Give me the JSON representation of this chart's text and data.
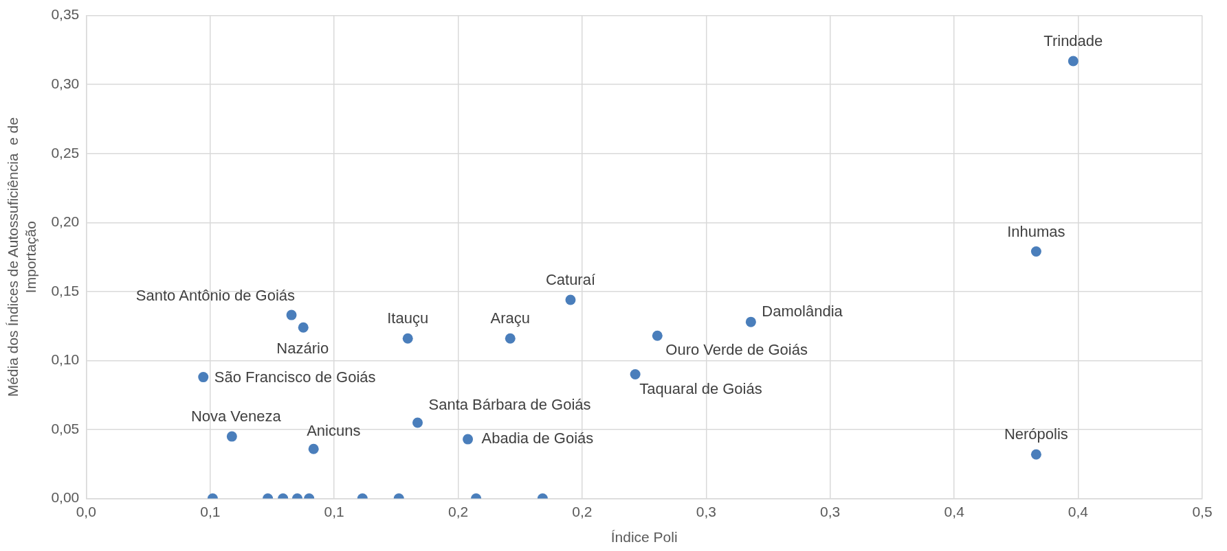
{
  "chart_data": {
    "type": "scatter",
    "xlabel": "Índice Poli",
    "ylabel": "Média dos Índices de Autossuficiência  e de Importação",
    "x": [
      0.4422,
      0.4256,
      0.217,
      0.2978,
      0.092,
      0.0973,
      0.1441,
      0.19,
      0.2559,
      0.246,
      0.0525,
      0.0653,
      0.1019,
      0.1485,
      0.171,
      0.4256,
      0.0567,
      0.0814,
      0.0882,
      0.0946,
      0.0999,
      0.1238,
      0.1401,
      0.1747,
      0.2045
    ],
    "series": [
      {
        "color": "#4a7ebb",
        "values": [
          0.317,
          0.179,
          0.144,
          0.128,
          0.133,
          0.124,
          0.116,
          0.116,
          0.118,
          0.09,
          0.088,
          0.045,
          0.036,
          0.055,
          0.043,
          0.032,
          0,
          0,
          0,
          0,
          0,
          0,
          0,
          0,
          0
        ]
      }
    ],
    "marker": "circle",
    "grid": true,
    "xlim": [
      0,
      0.5
    ],
    "xticks": [
      {
        "value": 0,
        "label": "0,0"
      },
      {
        "value": 0.0556,
        "label": "0,1"
      },
      {
        "value": 0.1111,
        "label": "0,1"
      },
      {
        "value": 0.1667,
        "label": "0,2"
      },
      {
        "value": 0.2222,
        "label": "0,2"
      },
      {
        "value": 0.2778,
        "label": "0,3"
      },
      {
        "value": 0.3333,
        "label": "0,3"
      },
      {
        "value": 0.3889,
        "label": "0,4"
      },
      {
        "value": 0.4444,
        "label": "0,4"
      },
      {
        "value": 0.5,
        "label": "0,5"
      }
    ],
    "ylim": [
      0,
      0.35
    ],
    "yticks": [
      {
        "value": 0,
        "label": "0,00"
      },
      {
        "value": 0.05,
        "label": "0,05"
      },
      {
        "value": 0.1,
        "label": "0,10"
      },
      {
        "value": 0.15,
        "label": "0,15"
      },
      {
        "value": 0.2,
        "label": "0,20"
      },
      {
        "value": 0.25,
        "label": "0,25"
      },
      {
        "value": 0.3,
        "label": "0,30"
      },
      {
        "value": 0.35,
        "label": "0,35"
      }
    ],
    "annotations": [
      {
        "text": "Trindade",
        "x": 0.4422,
        "y": 0.317
      },
      {
        "text": "Inhumas",
        "x": 0.4256,
        "y": 0.179
      },
      {
        "text": "Caturaí",
        "x": 0.217,
        "y": 0.144
      },
      {
        "text": "Damolândia",
        "x": 0.2978,
        "y": 0.128
      },
      {
        "text": "Santo Antônio de Goiás",
        "x": 0.092,
        "y": 0.133
      },
      {
        "text": "Nazário",
        "x": 0.0973,
        "y": 0.124
      },
      {
        "text": "Itauçu",
        "x": 0.1441,
        "y": 0.116
      },
      {
        "text": "Araçu",
        "x": 0.19,
        "y": 0.116
      },
      {
        "text": "Ouro Verde de Goiás",
        "x": 0.2559,
        "y": 0.118
      },
      {
        "text": "Taquaral de Goiás",
        "x": 0.246,
        "y": 0.09
      },
      {
        "text": "São Francisco de Goiás",
        "x": 0.0525,
        "y": 0.088
      },
      {
        "text": "Nova Veneza",
        "x": 0.0653,
        "y": 0.045
      },
      {
        "text": "Anicuns",
        "x": 0.1019,
        "y": 0.036
      },
      {
        "text": "Santa Bárbara de Goiás",
        "x": 0.1485,
        "y": 0.055
      },
      {
        "text": "Abadia de Goiás",
        "x": 0.171,
        "y": 0.043
      },
      {
        "text": "Nerópolis",
        "x": 0.4256,
        "y": 0.032
      }
    ]
  }
}
